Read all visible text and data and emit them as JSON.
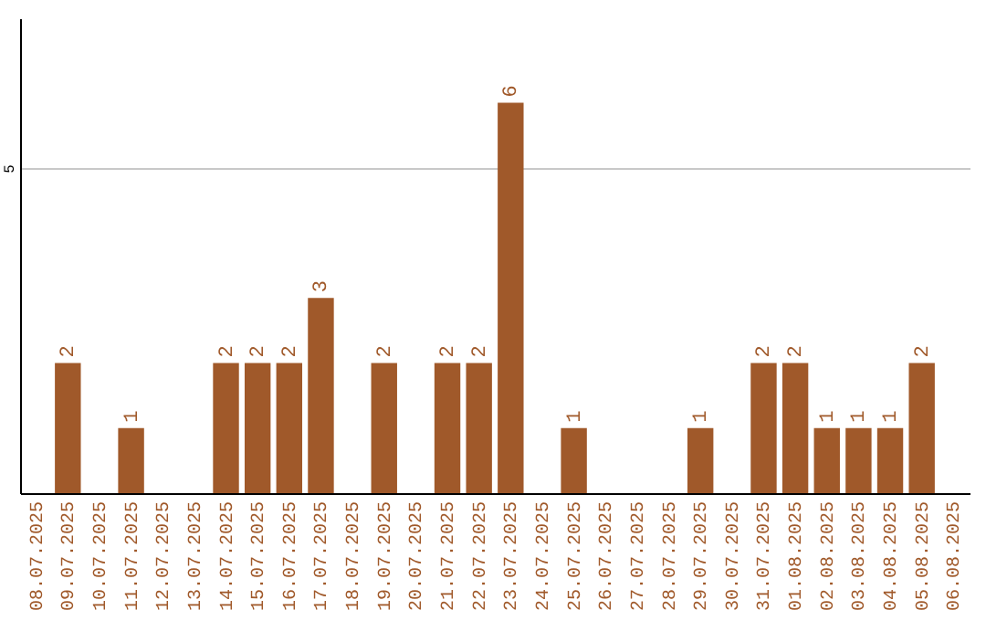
{
  "chart_data": {
    "type": "bar",
    "categories": [
      "08.07.2025",
      "09.07.2025",
      "10.07.2025",
      "11.07.2025",
      "12.07.2025",
      "13.07.2025",
      "14.07.2025",
      "15.07.2025",
      "16.07.2025",
      "17.07.2025",
      "18.07.2025",
      "19.07.2025",
      "20.07.2025",
      "21.07.2025",
      "22.07.2025",
      "23.07.2025",
      "24.07.2025",
      "25.07.2025",
      "26.07.2025",
      "27.07.2025",
      "28.07.2025",
      "29.07.2025",
      "30.07.2025",
      "31.07.2025",
      "01.08.2025",
      "02.08.2025",
      "03.08.2025",
      "04.08.2025",
      "05.08.2025",
      "06.08.2025"
    ],
    "values": [
      0,
      2,
      0,
      1,
      0,
      0,
      2,
      2,
      2,
      3,
      0,
      2,
      0,
      2,
      2,
      6,
      0,
      1,
      0,
      0,
      0,
      1,
      0,
      2,
      2,
      1,
      1,
      1,
      2,
      0
    ],
    "value_labels": [
      null,
      "2",
      null,
      "1",
      null,
      null,
      "2",
      "2",
      "2",
      "3",
      null,
      "2",
      null,
      "2",
      "2",
      "6",
      null,
      "1",
      null,
      null,
      null,
      "1",
      null,
      "2",
      "2",
      "1",
      "1",
      "1",
      "2",
      null
    ],
    "color": "#a0592a",
    "ylim": [
      0,
      7.3
    ],
    "yticks": [
      5
    ],
    "grid": "y"
  }
}
